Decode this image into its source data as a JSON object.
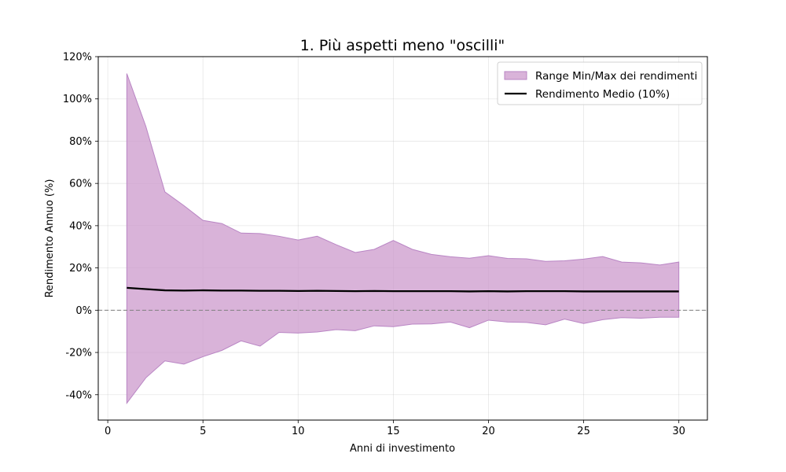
{
  "chart_data": {
    "type": "area",
    "title": "1. Più aspetti meno \"oscilli\"",
    "xlabel": "Anni di investimento",
    "ylabel": "Rendimento Annuo (%)",
    "xlim": [
      -0.5,
      31.5
    ],
    "ylim": [
      -52,
      120
    ],
    "xticks": [
      0,
      5,
      10,
      15,
      20,
      25,
      30
    ],
    "yticks": [
      -40,
      -20,
      0,
      20,
      40,
      60,
      80,
      100,
      120
    ],
    "ytick_suffix": "%",
    "grid": true,
    "zero_line": true,
    "legend_position": "top-right",
    "x": [
      1,
      2,
      3,
      4,
      5,
      6,
      7,
      8,
      9,
      10,
      11,
      12,
      13,
      14,
      15,
      16,
      17,
      18,
      19,
      20,
      21,
      22,
      23,
      24,
      25,
      26,
      27,
      28,
      29,
      30
    ],
    "series": [
      {
        "name": "Range Min/Max dei rendimenti",
        "kind": "band",
        "color": "#cc99cc",
        "upper": [
          112,
          87,
          56,
          49.5,
          42.5,
          41,
          36.5,
          36.3,
          35,
          33.2,
          35,
          31,
          27.3,
          28.8,
          33,
          28.8,
          26.4,
          25.3,
          24.6,
          25.8,
          24.5,
          24.3,
          23.1,
          23.4,
          24.2,
          25.4,
          22.8,
          22.4,
          21.4,
          22.8
        ],
        "lower": [
          -44,
          -32,
          -24,
          -25.5,
          -22,
          -19,
          -14.5,
          -17,
          -10.5,
          -10.8,
          -10.3,
          -9.2,
          -9.7,
          -7.4,
          -7.8,
          -6.6,
          -6.5,
          -5.6,
          -8.3,
          -4.7,
          -5.6,
          -5.8,
          -6.9,
          -4.2,
          -6.3,
          -4.5,
          -3.5,
          -3.8,
          -3.3,
          -3.3
        ]
      },
      {
        "name": "Rendimento Medio (10%)",
        "kind": "line",
        "color": "#000000",
        "values": [
          10.6,
          10,
          9.4,
          9.3,
          9.4,
          9.3,
          9.3,
          9.2,
          9.2,
          9.1,
          9.2,
          9.1,
          9.0,
          9.1,
          9.0,
          9.0,
          9.0,
          9.0,
          8.9,
          9.0,
          8.9,
          9.0,
          9.0,
          9.0,
          8.9,
          8.9,
          8.9,
          8.9,
          8.9,
          8.9
        ]
      }
    ]
  }
}
